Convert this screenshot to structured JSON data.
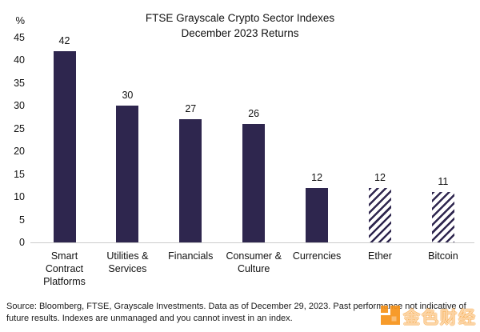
{
  "title": {
    "line1": "FTSE Grayscale Crypto Sector Indexes",
    "line2": "December 2023 Returns"
  },
  "y_axis": {
    "unit": "%",
    "ticks": [
      45,
      40,
      35,
      30,
      25,
      20,
      15,
      10,
      5,
      0
    ]
  },
  "chart_data": {
    "type": "bar",
    "title": "FTSE Grayscale Crypto Sector Indexes December 2023 Returns",
    "xlabel": "",
    "ylabel": "%",
    "ylim": [
      0,
      45
    ],
    "grid": false,
    "legend": "none",
    "categories": [
      "Smart Contract Platforms",
      "Utilities & Services",
      "Financials",
      "Consumer & Culture",
      "Currencies",
      "Ether",
      "Bitcoin"
    ],
    "category_lines": [
      [
        "Smart",
        "Contract",
        "Platforms"
      ],
      [
        "Utilities &",
        "Services"
      ],
      [
        "Financials"
      ],
      [
        "Consumer &",
        "Culture"
      ],
      [
        "Currencies"
      ],
      [
        "Ether"
      ],
      [
        "Bitcoin"
      ]
    ],
    "values": [
      42,
      30,
      27,
      26,
      12,
      12,
      11
    ],
    "hatched": [
      false,
      false,
      false,
      false,
      false,
      true,
      true
    ],
    "bar_color": "#2e264e",
    "hatch_background": "#ffffff"
  },
  "footer": {
    "source_text": "Source: Bloomberg, FTSE, Grayscale Investments. Data as of December 29, 2023. Past performance not indicative of future results. Indexes are unmanaged and you cannot invest in an index."
  },
  "watermark": {
    "text": "金色财经",
    "brand_color": "#f7931a"
  },
  "colors": {
    "bar": "#2e264e",
    "axis_line": "#cccccc",
    "text": "#1a1a1a"
  }
}
